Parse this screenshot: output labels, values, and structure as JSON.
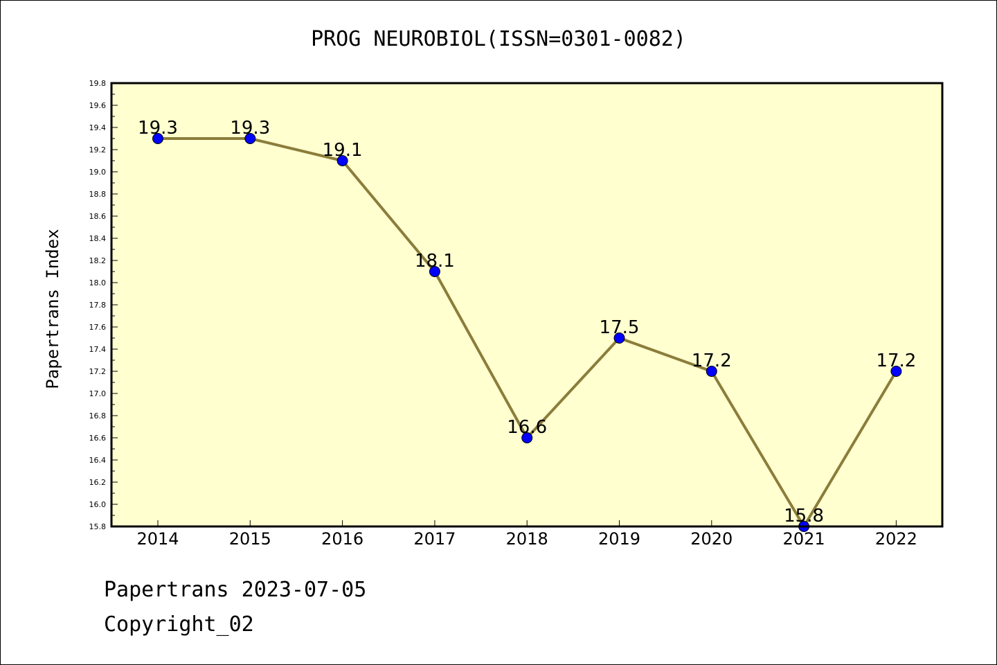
{
  "chart_data": {
    "type": "line",
    "title": "PROG NEUROBIOL(ISSN=0301-0082)",
    "ylabel": "Papertrans Index",
    "xlabel": "",
    "categories": [
      "2014",
      "2015",
      "2016",
      "2017",
      "2018",
      "2019",
      "2020",
      "2021",
      "2022"
    ],
    "values": [
      19.3,
      19.3,
      19.1,
      18.1,
      16.6,
      17.5,
      17.2,
      15.8,
      17.2
    ],
    "data_labels": [
      "19.3",
      "19.3",
      "19.1",
      "18.1",
      "16.6",
      "17.5",
      "17.2",
      "15.8",
      "17.2"
    ],
    "ylim": [
      15.8,
      19.8
    ],
    "yticks": [
      "15.8",
      "16.0",
      "16.2",
      "16.4",
      "16.6",
      "16.8",
      "17.0",
      "17.2",
      "17.4",
      "17.6",
      "17.8",
      "18.0",
      "18.2",
      "18.4",
      "18.6",
      "18.8",
      "19.0",
      "19.2",
      "19.4",
      "19.6",
      "19.8"
    ],
    "grid": false,
    "legend": "none",
    "colors": {
      "plot_background": "#ffffd0",
      "line": "#8b7d3a",
      "marker": "#0000ff"
    }
  },
  "footer": {
    "line1": "Papertrans 2023-07-05",
    "line2": "Copyright_02"
  }
}
